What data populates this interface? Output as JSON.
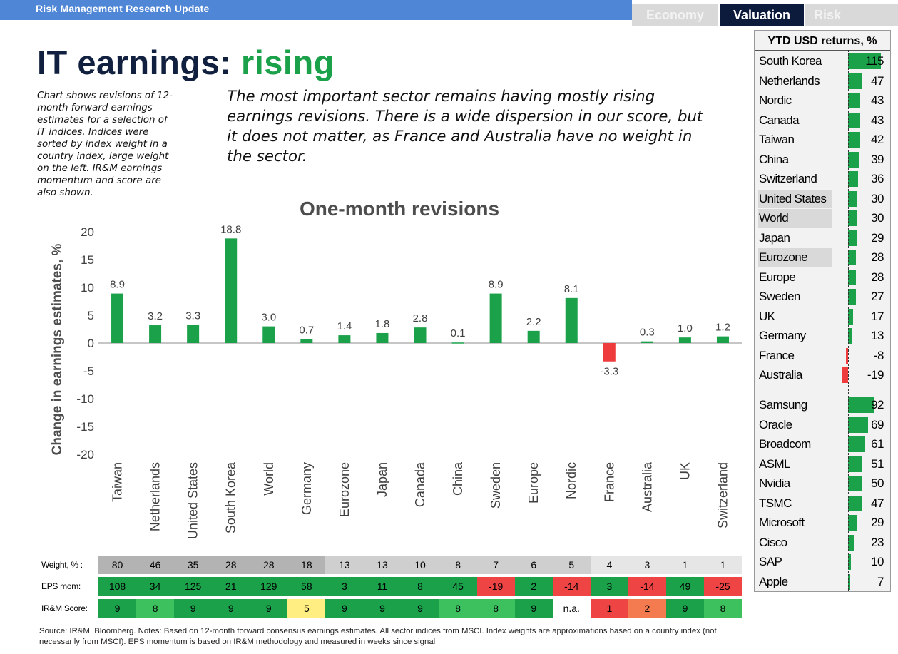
{
  "header": {
    "title": "Risk Management Research Update",
    "tabs": [
      "Economy",
      "Valuation",
      "Risk"
    ]
  },
  "headline": {
    "main": "IT earnings: ",
    "accent": "rising"
  },
  "side_note": "Chart shows revisions of 12-month forward earnings estimates for a selection of IT indices. Indices were sorted by index weight in a country index, large weight on the left. IR&M earnings momentum and score are also shown.",
  "lead": "The most important sector remains having mostly rising earnings revisions. There is a wide dispersion in our score, but it does not matter, as France and Australia have no weight in the sector.",
  "colors": {
    "positive": "#1aa14a",
    "negative": "#ee3b3b",
    "navy": "#12203f",
    "score_green": "#3cc15e",
    "score_yellow": "#ffee82",
    "score_orange": "#f47a4f",
    "score_red": "#ee4444",
    "weight_grey_dark": "#b3b3b3",
    "weight_grey_mid": "#cfcfcf",
    "weight_grey_light": "#e6e6e6"
  },
  "chart_data": {
    "type": "bar",
    "title": "One-month revisions",
    "xlabel": "",
    "ylabel": "Change in earnings estimates, %",
    "ylim": [
      -20,
      20
    ],
    "yticks": [
      -20,
      -15,
      -10,
      -5,
      0,
      5,
      10,
      15,
      20
    ],
    "grid": false,
    "categories": [
      "Taiwan",
      "Netherlands",
      "United States",
      "South Korea",
      "World",
      "Germany",
      "Eurozone",
      "Japan",
      "Canada",
      "China",
      "Sweden",
      "Europe",
      "Nordic",
      "France",
      "Australia",
      "UK",
      "Switzerland"
    ],
    "values": [
      8.9,
      3.2,
      3.3,
      18.8,
      3.0,
      0.7,
      1.4,
      1.8,
      2.8,
      0.1,
      8.9,
      2.2,
      8.1,
      -3.3,
      0.3,
      1.0,
      1.2
    ],
    "value_labels": [
      "8.9",
      "3.2",
      "3.3",
      "18.8",
      "3.0",
      "0.7",
      "1.4",
      "1.8",
      "2.8",
      "0.1",
      "8.9",
      "2.2",
      "8.1",
      "-3.3",
      "0.3",
      "1.0",
      "1.2"
    ]
  },
  "table": {
    "weight_label": "Weight, % :",
    "eps_label": "EPS mom:",
    "score_label": "IR&M Score:",
    "weight": [
      "80",
      "46",
      "35",
      "28",
      "28",
      "18",
      "13",
      "13",
      "10",
      "8",
      "7",
      "6",
      "5",
      "4",
      "3",
      "1",
      "1"
    ],
    "eps_mom": [
      "108",
      "34",
      "125",
      "21",
      "129",
      "58",
      "3",
      "11",
      "8",
      "45",
      "-19",
      "2",
      "-14",
      "3",
      "-14",
      "49",
      "-25"
    ],
    "score": [
      "9",
      "8",
      "9",
      "9",
      "9",
      "5",
      "9",
      "9",
      "9",
      "8",
      "8",
      "9",
      "n.a.",
      "1",
      "2",
      "9",
      "8"
    ]
  },
  "returns_panel": {
    "title": "YTD USD returns, %",
    "indices": [
      {
        "name": "South Korea",
        "value": 115
      },
      {
        "name": "Netherlands",
        "value": 47
      },
      {
        "name": "Nordic",
        "value": 43
      },
      {
        "name": "Canada",
        "value": 43
      },
      {
        "name": "Taiwan",
        "value": 42
      },
      {
        "name": "China",
        "value": 39
      },
      {
        "name": "Switzerland",
        "value": 36
      },
      {
        "name": "United States",
        "value": 30,
        "highlight": true
      },
      {
        "name": "World",
        "value": 30,
        "highlight": true
      },
      {
        "name": "Japan",
        "value": 29
      },
      {
        "name": "Eurozone",
        "value": 28,
        "highlight": true
      },
      {
        "name": "Europe",
        "value": 28
      },
      {
        "name": "Sweden",
        "value": 27
      },
      {
        "name": "UK",
        "value": 17
      },
      {
        "name": "Germany",
        "value": 13
      },
      {
        "name": "France",
        "value": -8
      },
      {
        "name": "Australia",
        "value": -19
      }
    ],
    "stocks": [
      {
        "name": "Samsung",
        "value": 92
      },
      {
        "name": "Oracle",
        "value": 69
      },
      {
        "name": "Broadcom",
        "value": 61
      },
      {
        "name": "ASML",
        "value": 51
      },
      {
        "name": "Nvidia",
        "value": 50
      },
      {
        "name": "TSMC",
        "value": 47
      },
      {
        "name": "Microsoft",
        "value": 29
      },
      {
        "name": "Cisco",
        "value": 23
      },
      {
        "name": "SAP",
        "value": 10
      },
      {
        "name": "Apple",
        "value": 7
      }
    ]
  },
  "source": "Source: IR&M, Bloomberg. Notes: Based on 12-month forward consensus earnings estimates. All sector indices from MSCI. Index weights are approximations based on a country index (not necessarily from MSCI). EPS momentum is based on IR&M methodology and measured in weeks since signal"
}
